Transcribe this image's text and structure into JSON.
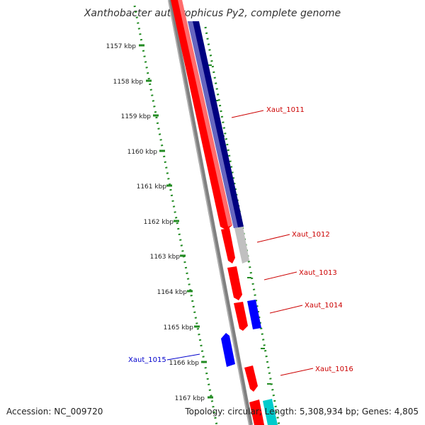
{
  "title": "Xanthobacter autotrophicus Py2, complete genome",
  "accession": "Accession: NC_009720",
  "summary": "Topology: circular; Length: 5,308,934 bp; Genes: 4,805",
  "colors": {
    "forward_gene": "#ff0000",
    "reverse_gene": "#0000ff",
    "dark_blue_gene": "#000080",
    "grey_gene": "#c0c0c0",
    "cyan_gene": "#00cccc",
    "backbone": "#808080",
    "ruler": "#228b22",
    "label_red": "#cc0000",
    "label_blue": "#0000cc"
  },
  "ruler": [
    "1157 kbp",
    "1158 kbp",
    "1159 kbp",
    "1160 kbp",
    "1161 kbp",
    "1162 kbp",
    "1163 kbp",
    "1164 kbp",
    "1165 kbp",
    "1166 kbp",
    "1167 kbp"
  ],
  "gene_labels": [
    {
      "text": "Xaut_1011",
      "strand": "forward"
    },
    {
      "text": "Xaut_1012",
      "strand": "forward"
    },
    {
      "text": "Xaut_1013",
      "strand": "forward"
    },
    {
      "text": "Xaut_1014",
      "strand": "forward"
    },
    {
      "text": "Xaut_1015",
      "strand": "reverse"
    },
    {
      "text": "Xaut_1016",
      "strand": "forward"
    }
  ]
}
